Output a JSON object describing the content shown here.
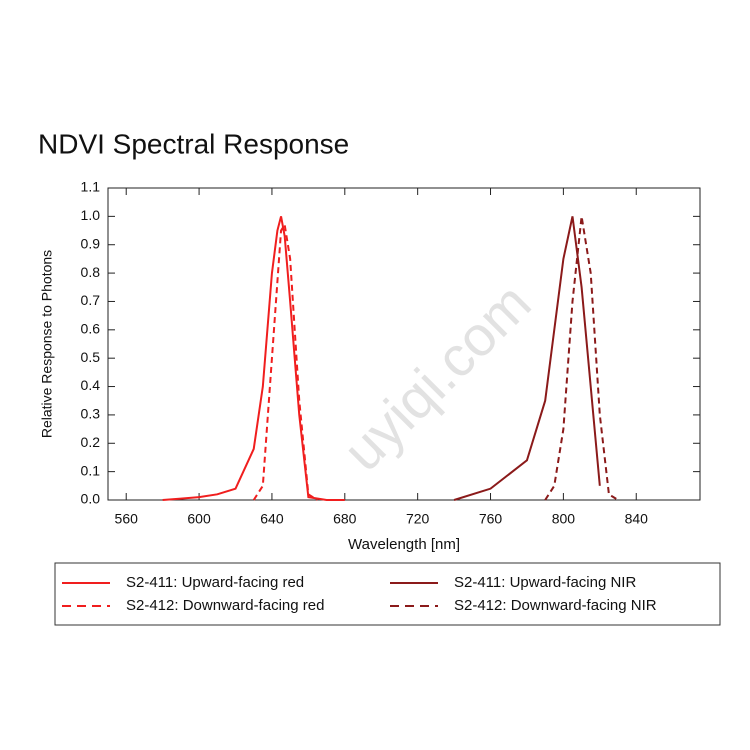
{
  "chart_data": {
    "type": "line",
    "title": "NDVI Spectral Response",
    "xlabel": "Wavelength [nm]",
    "ylabel": "Relative Response to Photons",
    "watermark": "uyiqi.com",
    "xlim": [
      550,
      875
    ],
    "ylim": [
      0,
      1.1
    ],
    "xticks": [
      560,
      600,
      640,
      680,
      720,
      760,
      800,
      840
    ],
    "yticks": [
      {
        "value": 0,
        "label": "0.0"
      },
      0.1,
      0.2,
      0.3,
      0.4,
      0.5,
      0.6,
      0.7,
      0.8,
      0.9,
      {
        "value": 1,
        "label": "1.0"
      },
      1.1
    ],
    "series": [
      {
        "name": "S2-411: Upward-facing red",
        "color": "#f01e1e",
        "style": "solid",
        "x": [
          580,
          590,
          600,
          610,
          620,
          630,
          635,
          640,
          643,
          645,
          647,
          650,
          655,
          660,
          670,
          680
        ],
        "values": [
          0,
          0.005,
          0.01,
          0.02,
          0.04,
          0.18,
          0.4,
          0.8,
          0.95,
          1.0,
          0.93,
          0.7,
          0.3,
          0.01,
          0,
          0
        ]
      },
      {
        "name": "S2-412: Downward-facing red",
        "color": "#f01e1e",
        "style": "dashed",
        "x": [
          630,
          635,
          640,
          645,
          647,
          650,
          655,
          660,
          665
        ],
        "values": [
          0,
          0.05,
          0.5,
          0.95,
          0.97,
          0.85,
          0.35,
          0.02,
          0
        ]
      },
      {
        "name": "S2-411: Upward-facing NIR",
        "color": "#8b1a1a",
        "style": "solid",
        "x": [
          740,
          760,
          780,
          790,
          800,
          805,
          810,
          815,
          820
        ],
        "values": [
          0,
          0.04,
          0.14,
          0.35,
          0.85,
          1.0,
          0.75,
          0.4,
          0.05
        ]
      },
      {
        "name": "S2-412: Downward-facing NIR",
        "color": "#8b1a1a",
        "style": "dashed",
        "x": [
          790,
          795,
          800,
          805,
          810,
          815,
          820,
          825,
          830
        ],
        "values": [
          0,
          0.05,
          0.25,
          0.7,
          1.0,
          0.8,
          0.3,
          0.02,
          0
        ]
      }
    ]
  }
}
